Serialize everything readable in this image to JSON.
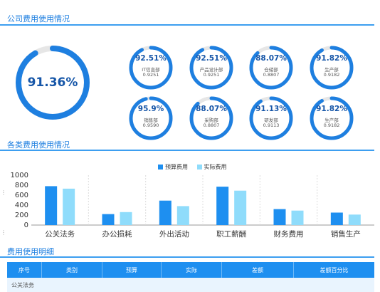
{
  "sections": {
    "overview_title": "公司费用使用情况",
    "categories_title": "各类费用使用情况",
    "detail_title": "费用使用明细"
  },
  "overall": {
    "percent_text": "91.36%",
    "value": 0.9136
  },
  "departments": [
    {
      "percent_text": "92.51%",
      "name": "IT信息部",
      "ratio": "0.9251",
      "value": 0.9251
    },
    {
      "percent_text": "92.51%",
      "name": "产品设计部",
      "ratio": "0.9251",
      "value": 0.9251
    },
    {
      "percent_text": "88.07%",
      "name": "仓储部",
      "ratio": "0.8807",
      "value": 0.8807
    },
    {
      "percent_text": "91.82%",
      "name": "生产部",
      "ratio": "0.9182",
      "value": 0.9182
    },
    {
      "percent_text": "95.9%",
      "name": "销售部",
      "ratio": "0.9590",
      "value": 0.959
    },
    {
      "percent_text": "88.07%",
      "name": "采购部",
      "ratio": "0.8807",
      "value": 0.8807
    },
    {
      "percent_text": "91.13%",
      "name": "研发部",
      "ratio": "0.9113",
      "value": 0.9113
    },
    {
      "percent_text": "91.82%",
      "name": "生产部",
      "ratio": "0.9182",
      "value": 0.9182
    }
  ],
  "colors": {
    "accent": "#1e7fe0",
    "gauge_fill": "#1e7fe0",
    "gauge_track": "#e6e6e6",
    "budget": "#1e8ff0",
    "actual": "#8fdcfb",
    "table_header": "#1e8ff0"
  },
  "chart_data": {
    "type": "bar",
    "categories": [
      "公关法务",
      "办公损耗",
      "外出活动",
      "职工薪酬",
      "财务费用",
      "销售生产"
    ],
    "series": [
      {
        "name": "预算费用",
        "values": [
          780,
          220,
          490,
          770,
          320,
          250
        ]
      },
      {
        "name": "实际费用",
        "values": [
          730,
          260,
          380,
          690,
          290,
          210
        ]
      }
    ],
    "yticks": [
      "1000",
      "800",
      "600",
      "400",
      "200",
      "0"
    ],
    "ylim": [
      0,
      1000
    ],
    "legend_position": "top-center",
    "grid": false
  },
  "detail_table": {
    "columns": [
      "序号",
      "类别",
      "预算",
      "实际",
      "差额",
      "差额百分比"
    ],
    "rows": [
      [
        "公关法务"
      ]
    ]
  }
}
